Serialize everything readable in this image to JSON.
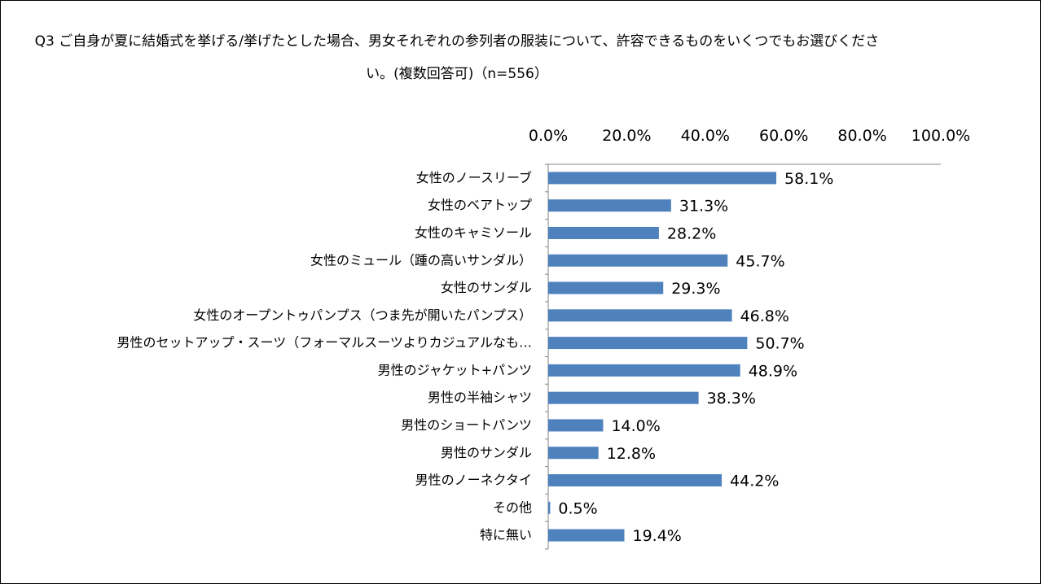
{
  "chart_data": {
    "type": "bar",
    "orientation": "horizontal",
    "title": "Q3 ご自身が夏に結婚式を挙げる/挙げたとした場合、男女それぞれの参列者の服装について、許容できるものをいくつでもお選びください。(複数回答可)（n=556）",
    "xlim": [
      0,
      100
    ],
    "tick_values": [
      0,
      20,
      40,
      60,
      80,
      100
    ],
    "tick_labels": [
      "0.0%",
      "20.0%",
      "40.0%",
      "60.0%",
      "80.0%",
      "100.0%"
    ],
    "axis_position": "top",
    "grid": false,
    "legend": "none",
    "bar_color": "#4f81bd",
    "categories": [
      "女性のノースリーブ",
      "女性のベアトップ",
      "女性のキャミソール",
      "女性のミュール（踵の高いサンダル）",
      "女性のサンダル",
      "女性のオープントゥパンプス（つま先が開いたパンプス）",
      "男性のセットアップ・スーツ（フォーマルスーツよりカジュアルなも…",
      "男性のジャケット+パンツ",
      "男性の半袖シャツ",
      "男性のショートパンツ",
      "男性のサンダル",
      "男性のノーネクタイ",
      "その他",
      "特に無い"
    ],
    "values": [
      58.1,
      31.3,
      28.2,
      45.7,
      29.3,
      46.8,
      50.7,
      48.9,
      38.3,
      14.0,
      12.8,
      44.2,
      0.5,
      19.4
    ],
    "value_labels": [
      "58.1%",
      "31.3%",
      "28.2%",
      "45.7%",
      "29.3%",
      "46.8%",
      "50.7%",
      "48.9%",
      "38.3%",
      "14.0%",
      "12.8%",
      "44.2%",
      "0.5%",
      "19.4%"
    ]
  }
}
